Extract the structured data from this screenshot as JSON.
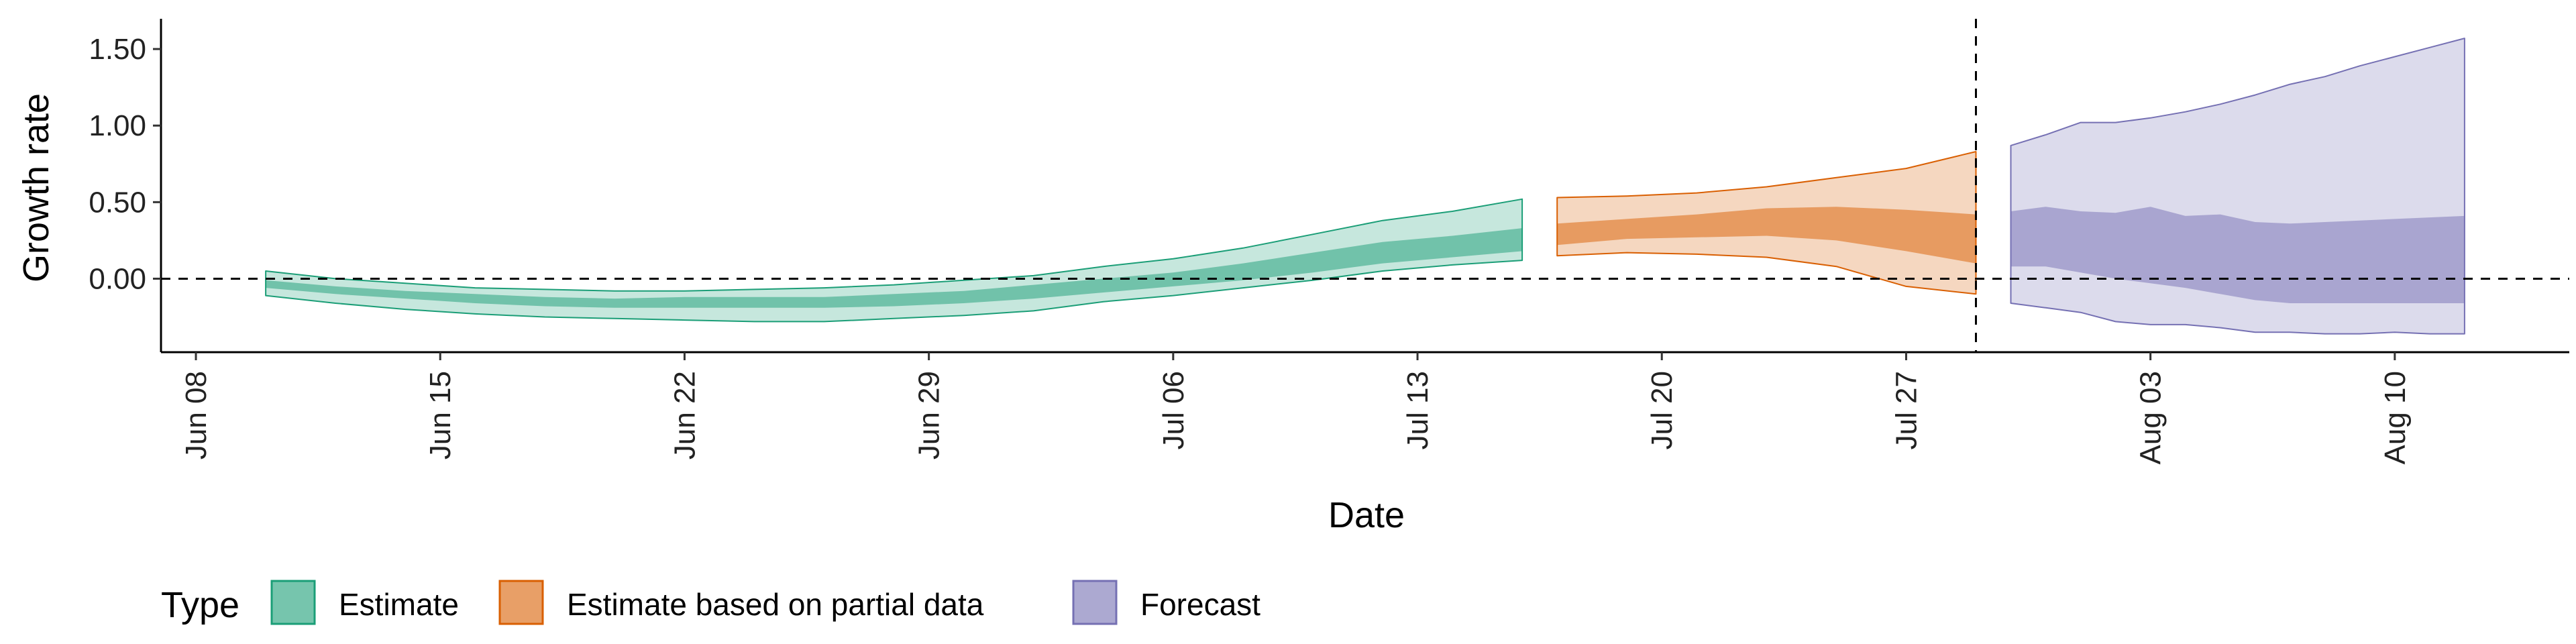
{
  "chart_data": {
    "type": "area",
    "xlabel": "Date",
    "ylabel": "Growth rate",
    "x_tick_labels": [
      "Jun 08",
      "Jun 15",
      "Jun 22",
      "Jun 29",
      "Jul 06",
      "Jul 13",
      "Jul 20",
      "Jul 27",
      "Aug 03",
      "Aug 10"
    ],
    "y_tick_labels": [
      "0.00",
      "0.50",
      "1.00",
      "1.50"
    ],
    "y_ticks": [
      0,
      0.5,
      1.0,
      1.5
    ],
    "xlim": [
      "2020-06-07",
      "2020-08-15"
    ],
    "ylim": [
      -0.48,
      1.68
    ],
    "reference_lines": {
      "horizontal_y": 0,
      "vertical_x": "2020-07-29"
    },
    "legend": {
      "title": "Type",
      "position": "bottom-left",
      "items": [
        {
          "label": "Estimate",
          "color": "#1b9e77"
        },
        {
          "label": "Estimate based on partial data",
          "color": "#d95f02"
        },
        {
          "label": "Forecast",
          "color": "#7570b3"
        }
      ]
    },
    "series": [
      {
        "type_index": 0,
        "color": "#1b9e77",
        "dates": [
          "2020-06-10",
          "2020-06-12",
          "2020-06-14",
          "2020-06-16",
          "2020-06-18",
          "2020-06-20",
          "2020-06-22",
          "2020-06-24",
          "2020-06-26",
          "2020-06-28",
          "2020-06-30",
          "2020-07-02",
          "2020-07-04",
          "2020-07-06",
          "2020-07-08",
          "2020-07-10",
          "2020-07-12",
          "2020-07-14",
          "2020-07-16"
        ],
        "lower90": [
          -0.11,
          -0.16,
          -0.2,
          -0.23,
          -0.25,
          -0.26,
          -0.27,
          -0.28,
          -0.28,
          -0.26,
          -0.24,
          -0.21,
          -0.15,
          -0.11,
          -0.06,
          -0.01,
          0.05,
          0.09,
          0.12
        ],
        "lower50": [
          -0.06,
          -0.1,
          -0.13,
          -0.16,
          -0.18,
          -0.19,
          -0.19,
          -0.19,
          -0.19,
          -0.18,
          -0.16,
          -0.13,
          -0.09,
          -0.05,
          -0.01,
          0.04,
          0.1,
          0.14,
          0.18
        ],
        "upper50": [
          -0.01,
          -0.05,
          -0.08,
          -0.1,
          -0.12,
          -0.13,
          -0.12,
          -0.12,
          -0.12,
          -0.1,
          -0.08,
          -0.04,
          0.0,
          0.04,
          0.1,
          0.17,
          0.24,
          0.28,
          0.33
        ],
        "upper90": [
          0.05,
          0.0,
          -0.03,
          -0.06,
          -0.07,
          -0.08,
          -0.08,
          -0.07,
          -0.06,
          -0.04,
          -0.01,
          0.02,
          0.08,
          0.13,
          0.2,
          0.29,
          0.38,
          0.44,
          0.52
        ]
      },
      {
        "type_index": 1,
        "color": "#d95f02",
        "dates": [
          "2020-07-17",
          "2020-07-19",
          "2020-07-21",
          "2020-07-23",
          "2020-07-25",
          "2020-07-27",
          "2020-07-29"
        ],
        "lower90": [
          0.15,
          0.17,
          0.16,
          0.14,
          0.08,
          -0.05,
          -0.1
        ],
        "lower50": [
          0.22,
          0.26,
          0.27,
          0.28,
          0.25,
          0.18,
          0.1
        ],
        "upper50": [
          0.36,
          0.39,
          0.42,
          0.46,
          0.47,
          0.45,
          0.42
        ],
        "upper90": [
          0.53,
          0.54,
          0.56,
          0.6,
          0.66,
          0.72,
          0.83
        ]
      },
      {
        "type_index": 2,
        "color": "#7570b3",
        "dates": [
          "2020-07-30",
          "2020-07-31",
          "2020-08-01",
          "2020-08-02",
          "2020-08-03",
          "2020-08-04",
          "2020-08-05",
          "2020-08-06",
          "2020-08-07",
          "2020-08-08",
          "2020-08-09",
          "2020-08-10",
          "2020-08-11",
          "2020-08-12"
        ],
        "lower90": [
          -0.16,
          -0.19,
          -0.22,
          -0.28,
          -0.3,
          -0.3,
          -0.32,
          -0.35,
          -0.35,
          -0.36,
          -0.36,
          -0.35,
          -0.36,
          -0.36
        ],
        "lower50": [
          0.08,
          0.08,
          0.04,
          0.0,
          -0.03,
          -0.06,
          -0.1,
          -0.14,
          -0.16,
          -0.16,
          -0.16,
          -0.16,
          -0.16,
          -0.16
        ],
        "upper50": [
          0.44,
          0.47,
          0.44,
          0.43,
          0.47,
          0.41,
          0.42,
          0.37,
          0.36,
          0.37,
          0.38,
          0.39,
          0.4,
          0.41
        ],
        "upper90": [
          0.87,
          0.94,
          1.02,
          1.02,
          1.05,
          1.09,
          1.14,
          1.2,
          1.27,
          1.32,
          1.39,
          1.45,
          1.51,
          1.57
        ]
      }
    ]
  }
}
